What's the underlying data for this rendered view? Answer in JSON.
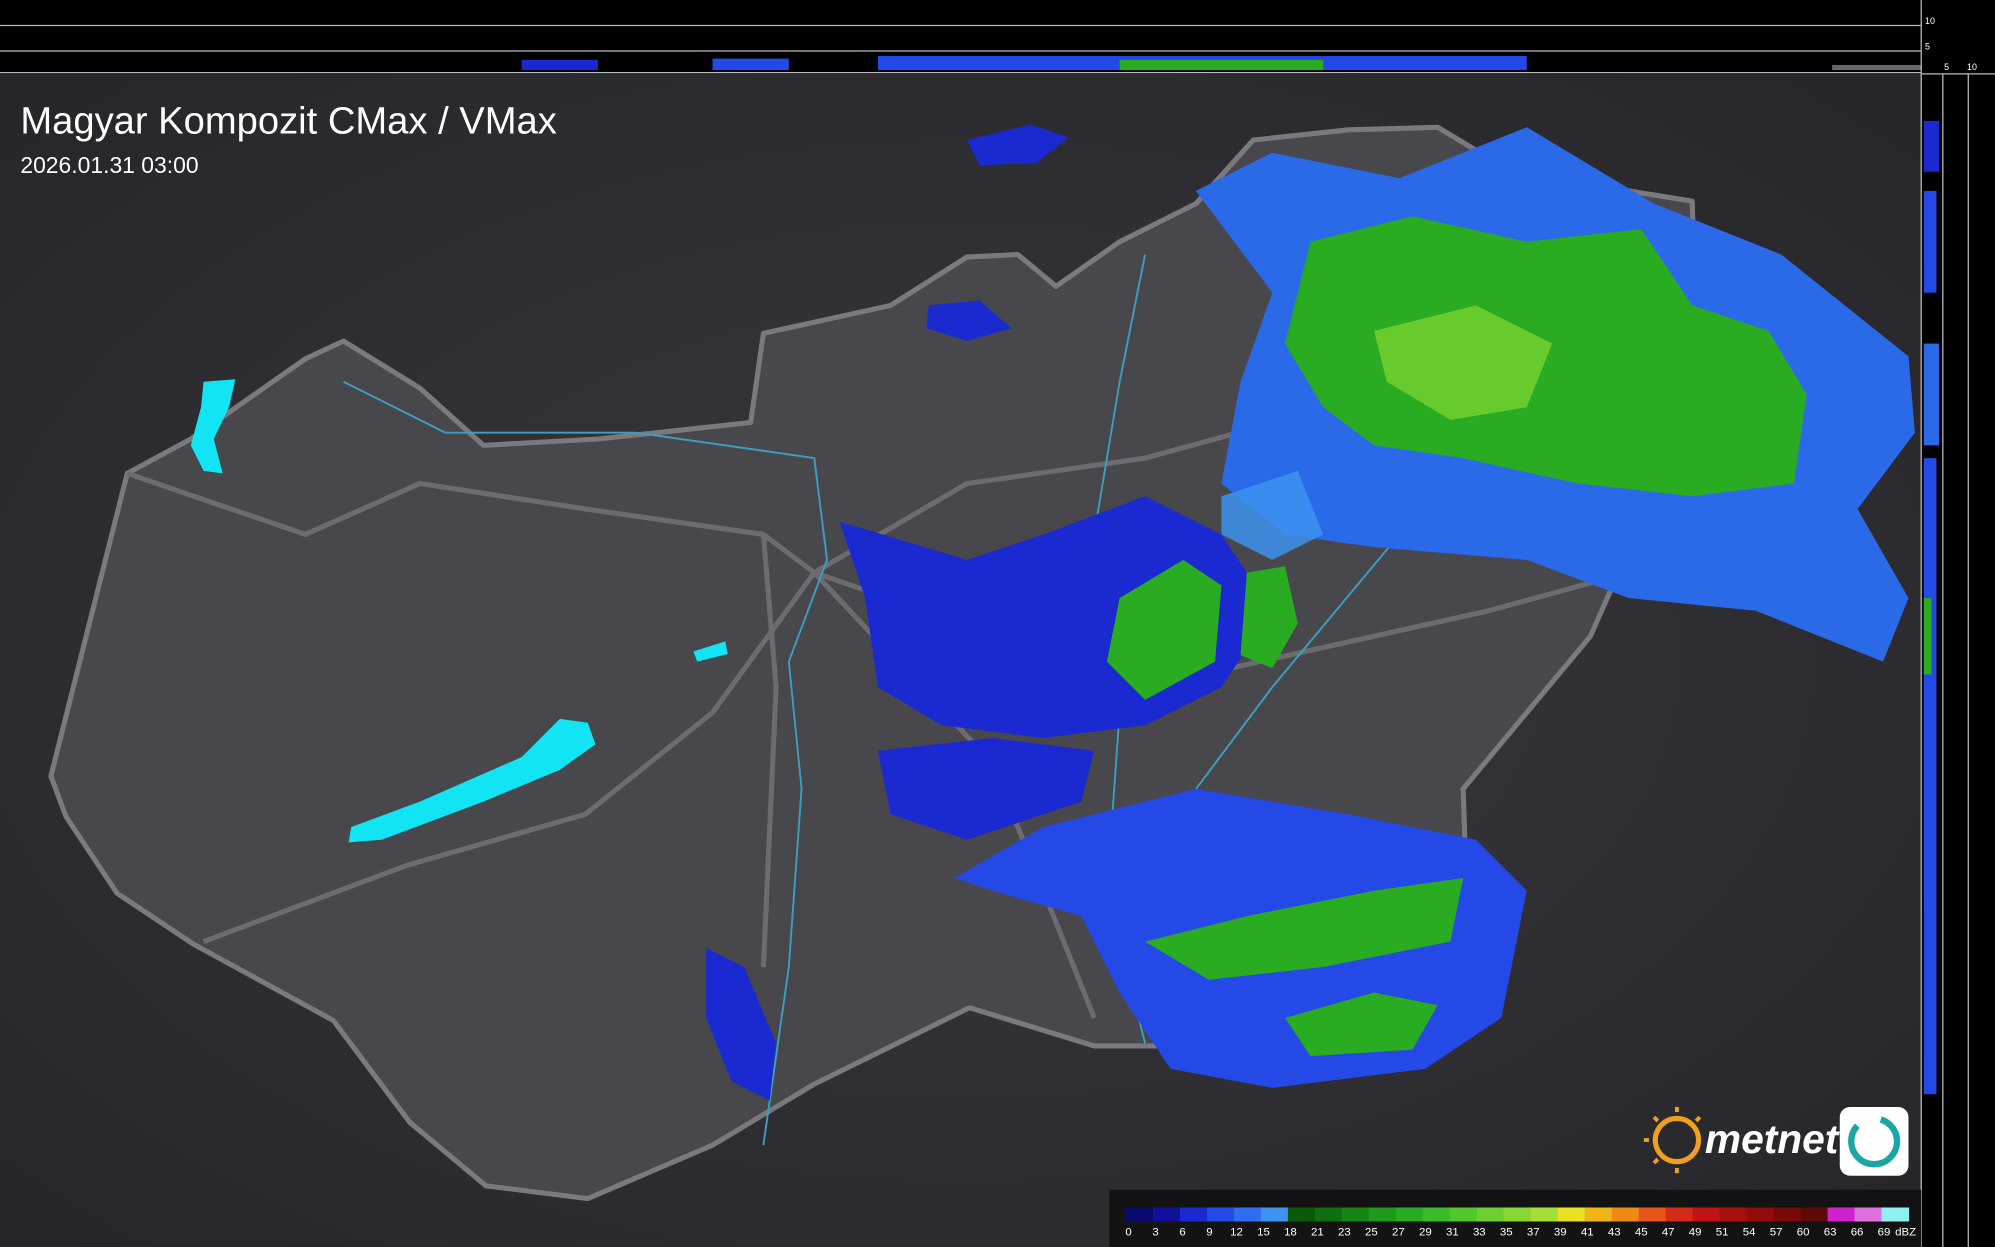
{
  "header": {
    "title": "Magyar Kompozit CMax / VMax",
    "timestamp": "2026.01.31 03:00"
  },
  "side_panel": {
    "top_ticks": [
      "10",
      "5"
    ],
    "right_ticks": [
      "5",
      "10"
    ]
  },
  "logo": {
    "text": "metnet"
  },
  "legend": {
    "labels": [
      0,
      3,
      6,
      9,
      12,
      15,
      18,
      21,
      23,
      25,
      27,
      29,
      31,
      33,
      35,
      37,
      39,
      41,
      43,
      45,
      47,
      49,
      51,
      54,
      57,
      60,
      63,
      66,
      69
    ],
    "unit": "dBZ",
    "colors": [
      "#0a0a6e",
      "#10109a",
      "#1a2ad0",
      "#2449e6",
      "#2f6ef0",
      "#3d93f0",
      "#0a5a0a",
      "#0f6e10",
      "#168416",
      "#1f9a1c",
      "#2aac22",
      "#3abc28",
      "#52c62c",
      "#6ece30",
      "#8ad634",
      "#a6de38",
      "#e8e020",
      "#f0b418",
      "#ee8a14",
      "#e6561a",
      "#d42a18",
      "#c01414",
      "#a81010",
      "#920c0c",
      "#7a0a0a",
      "#5e0808",
      "#d020d0",
      "#e070e0",
      "#8ef0f0"
    ]
  }
}
